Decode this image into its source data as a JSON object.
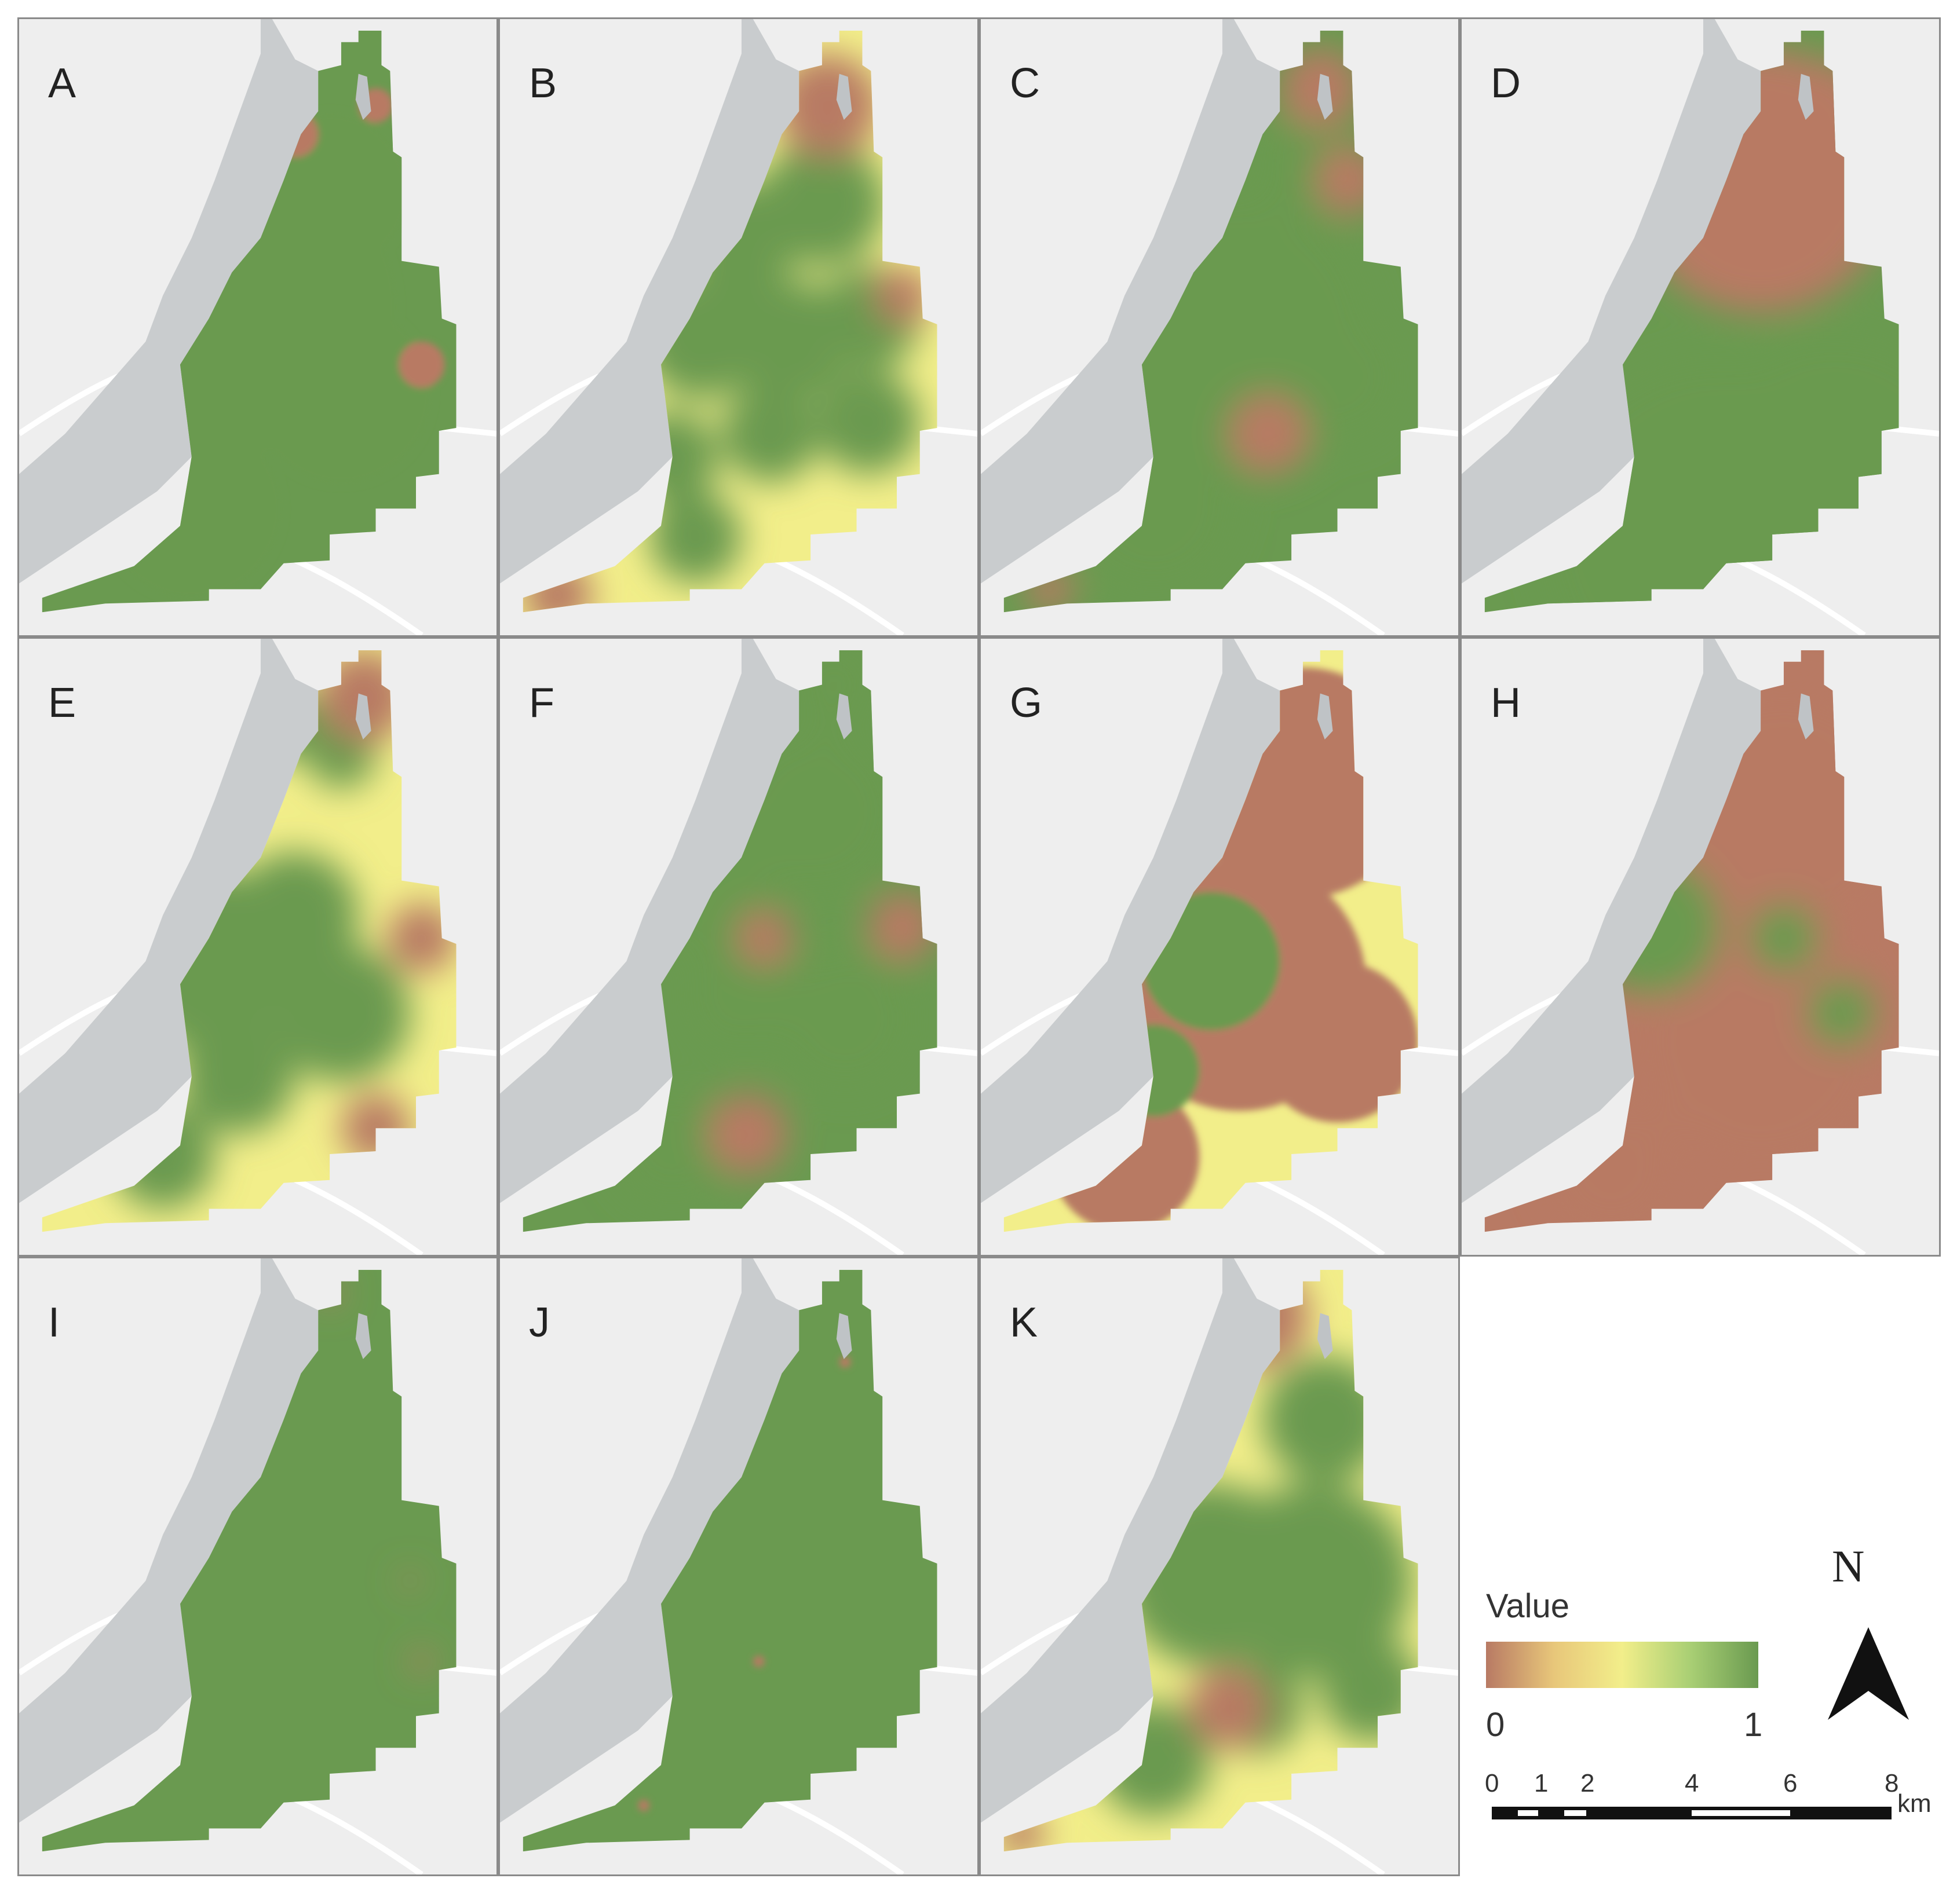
{
  "panels": [
    {
      "letter": "A",
      "pattern": "fine-mixed"
    },
    {
      "letter": "B",
      "pattern": "large-blobs"
    },
    {
      "letter": "C",
      "pattern": "mostly-high-red-edges"
    },
    {
      "letter": "D",
      "pattern": "red-arc-north"
    },
    {
      "letter": "E",
      "pattern": "blobs-red-east"
    },
    {
      "letter": "F",
      "pattern": "blobs-mostly-green"
    },
    {
      "letter": "G",
      "pattern": "speckled-red"
    },
    {
      "letter": "H",
      "pattern": "mostly-red-west-green"
    },
    {
      "letter": "I",
      "pattern": "almost-all-green"
    },
    {
      "letter": "J",
      "pattern": "green-fine-speckle"
    },
    {
      "letter": "K",
      "pattern": "green-red-north"
    }
  ],
  "legend": {
    "title": "Value",
    "min_label": "0",
    "max_label": "1",
    "colors": [
      "#b87a64",
      "#e8c77a",
      "#f2ee8a",
      "#a9cf74",
      "#6a9a50"
    ]
  },
  "north_arrow": {
    "label": "N"
  },
  "scale_bar": {
    "ticks": [
      "0",
      "1",
      "2",
      "4",
      "6",
      "8"
    ],
    "unit": "km"
  },
  "colors": {
    "high": "#6a9a50",
    "mid": "#f2ee8a",
    "low": "#b87a64",
    "land": "#eeeeee",
    "water": "#c9ccce"
  }
}
